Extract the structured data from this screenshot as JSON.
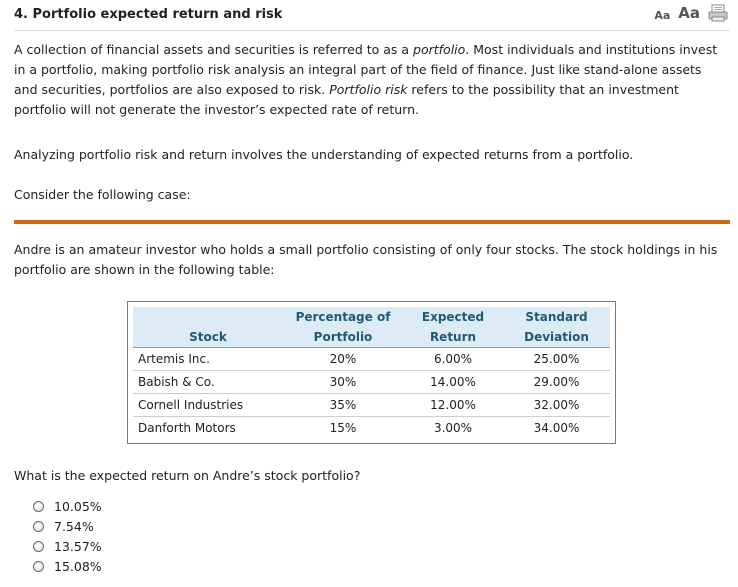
{
  "header": {
    "title": "4. Portfolio expected return and risk",
    "font_small": "Aa",
    "font_large": "Aa",
    "print_icon": "print-icon"
  },
  "intro": {
    "p1_a": "A collection of financial assets and securities is referred to as a ",
    "p1_em1": "portfolio",
    "p1_b": ". Most individuals and institutions invest in a portfolio, making portfolio risk analysis an integral part of the field of finance. Just like stand-alone assets and securities, portfolios are also exposed to risk. ",
    "p1_em2": "Portfolio risk",
    "p1_c": " refers to the possibility that an investment portfolio will not generate the investor’s expected rate of return.",
    "p2": "Analyzing portfolio risk and return involves the understanding of expected returns from a portfolio.",
    "p3": "Consider the following case:"
  },
  "case": {
    "text": "Andre is an amateur investor who holds a small portfolio consisting of only four stocks. The stock holdings in his portfolio are shown in the following table:"
  },
  "table": {
    "headers": {
      "stock": "Stock",
      "pct_line1": "Percentage of",
      "pct_line2": "Portfolio",
      "ret_line1": "Expected",
      "ret_line2": "Return",
      "sd_line1": "Standard",
      "sd_line2": "Deviation"
    },
    "rows": [
      {
        "stock": "Artemis Inc.",
        "pct": "20%",
        "ret": "6.00%",
        "sd": "25.00%"
      },
      {
        "stock": "Babish & Co.",
        "pct": "30%",
        "ret": "14.00%",
        "sd": "29.00%"
      },
      {
        "stock": "Cornell Industries",
        "pct": "35%",
        "ret": "12.00%",
        "sd": "32.00%"
      },
      {
        "stock": "Danforth Motors",
        "pct": "15%",
        "ret": "3.00%",
        "sd": "34.00%"
      }
    ]
  },
  "question": {
    "text": "What is the expected return on Andre’s stock portfolio?",
    "options": [
      "10.05%",
      "7.54%",
      "13.57%",
      "15.08%"
    ]
  },
  "colors": {
    "accent_rule": "#cc6a14",
    "table_border": "#3f8ea6",
    "table_header_bg": "#dcebf6",
    "table_header_text": "#1f5b72"
  }
}
